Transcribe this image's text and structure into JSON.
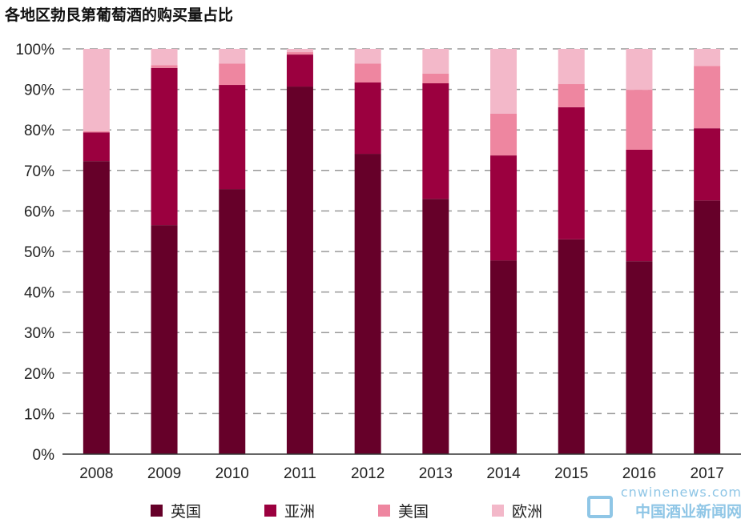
{
  "chart_data": {
    "type": "bar",
    "stacked": true,
    "title": "各地区勃艮第葡萄酒的购买量占比",
    "xlabel": "",
    "ylabel": "",
    "ylim": [
      0,
      100
    ],
    "yticks": [
      "0%",
      "10%",
      "20%",
      "30%",
      "40%",
      "50%",
      "60%",
      "70%",
      "80%",
      "90%",
      "100%"
    ],
    "grid": true,
    "legend_position": "bottom",
    "categories": [
      "2008",
      "2009",
      "2010",
      "2011",
      "2012",
      "2013",
      "2014",
      "2015",
      "2016",
      "2017"
    ],
    "series": [
      {
        "name": "英国",
        "color": "#660029",
        "values": [
          72.3,
          56.5,
          65.4,
          90.7,
          74.1,
          63.0,
          47.8,
          53.0,
          47.6,
          62.6
        ]
      },
      {
        "name": "亚洲",
        "color": "#9b003f",
        "values": [
          7.1,
          38.8,
          25.7,
          7.9,
          17.6,
          28.5,
          25.9,
          32.6,
          27.5,
          17.8
        ]
      },
      {
        "name": "美国",
        "color": "#ee86a0",
        "values": [
          0.3,
          0.7,
          5.3,
          0.6,
          4.7,
          2.4,
          10.3,
          5.7,
          14.8,
          15.4
        ]
      },
      {
        "name": "欧洲",
        "color": "#f3b8c9",
        "values": [
          20.3,
          4.0,
          3.6,
          0.8,
          3.6,
          6.1,
          16.0,
          8.7,
          10.1,
          4.2
        ]
      }
    ]
  },
  "watermark": {
    "line1": "cnwinenews.com",
    "line2": "中国酒业新闻网"
  }
}
